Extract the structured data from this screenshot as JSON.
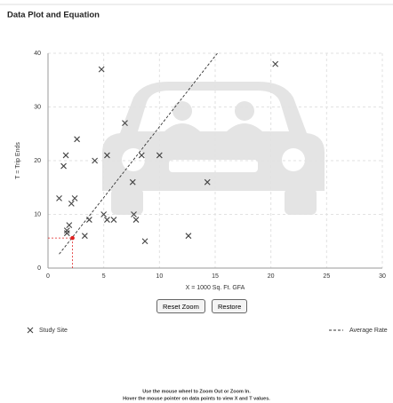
{
  "header": {
    "title": "Data Plot and Equation"
  },
  "chart_data": {
    "type": "scatter",
    "x_label": "X = 1000 Sq. Ft. GFA",
    "y_label": "T = Trip Ends",
    "xlim": [
      0,
      30
    ],
    "ylim": [
      0,
      40
    ],
    "xticks": [
      0,
      5,
      10,
      15,
      20,
      25,
      30
    ],
    "yticks": [
      0,
      10,
      20,
      30,
      40
    ],
    "grid": true,
    "legend": "bottom",
    "series": [
      {
        "name": "Study Site",
        "color": "#444444",
        "marker": "x",
        "x": [
          4.8,
          20.4,
          6.9,
          2.6,
          1.6,
          1.4,
          4.2,
          5.3,
          8.4,
          10,
          7.6,
          14.3,
          1.0,
          2.4,
          2.1,
          5.0,
          5.3,
          5.9,
          7.7,
          7.9,
          3.7,
          1.9,
          1.7,
          1.7,
          3.3,
          8.7,
          12.6
        ],
        "values": [
          37,
          38,
          27,
          24,
          21,
          19,
          20,
          21,
          21,
          21,
          16,
          16,
          13,
          13,
          12,
          10,
          9,
          9,
          10,
          9,
          9,
          8,
          7,
          6.5,
          6,
          5,
          6
        ]
      },
      {
        "name": "Average Rate",
        "color": "#333333",
        "style": "dashed",
        "x": [
          1.0,
          15.2
        ],
        "values": [
          2.6,
          40
        ]
      }
    ],
    "highlight": {
      "x": 2.2,
      "y": 5.6,
      "color": "#e02020"
    }
  },
  "buttons": [
    "Reset Zoom",
    "Restore"
  ],
  "instructions": [
    "Use the mouse wheel to Zoom Out or Zoom In.",
    "Hover the mouse pointer on data points to view X and T values."
  ]
}
